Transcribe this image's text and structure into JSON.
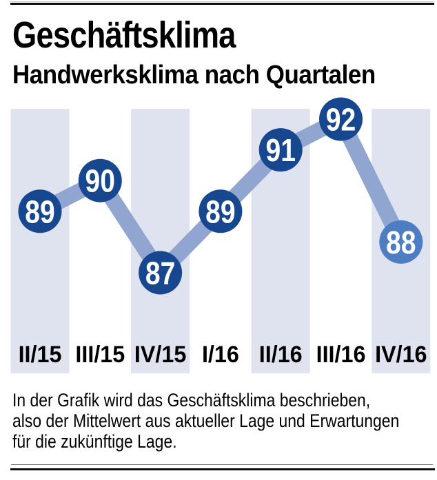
{
  "header": {
    "title": "Geschäftsklima",
    "subtitle": "Handwerksklima nach Quartalen"
  },
  "chart_data": {
    "type": "line",
    "categories": [
      "II/15",
      "III/15",
      "IV/15",
      "I/16",
      "II/16",
      "III/16",
      "IV/16"
    ],
    "values": [
      89,
      90,
      87,
      89,
      91,
      92,
      88
    ],
    "title": "Geschäftsklima",
    "subtitle": "Handwerksklima nach Quartalen",
    "xlabel": "",
    "ylabel": "",
    "ylim": [
      86,
      93
    ],
    "grid": false,
    "legend": "none",
    "value_labels": "on-point",
    "highlighted_band_columns": [
      0,
      2,
      4,
      6
    ],
    "last_point_highlighted": true,
    "colors": {
      "point": "#17478e",
      "point_last": "#4d7ec3",
      "line": "#90a5d0",
      "band": "#dfe2ef",
      "value_label": "#ffffff",
      "category_label": "#000000"
    }
  },
  "footer": {
    "lines": [
      "In der Grafik wird das Geschäftsklima beschrieben,",
      "also der Mittelwert aus aktueller Lage und Erwartungen",
      "für die zukünftige Lage."
    ]
  }
}
